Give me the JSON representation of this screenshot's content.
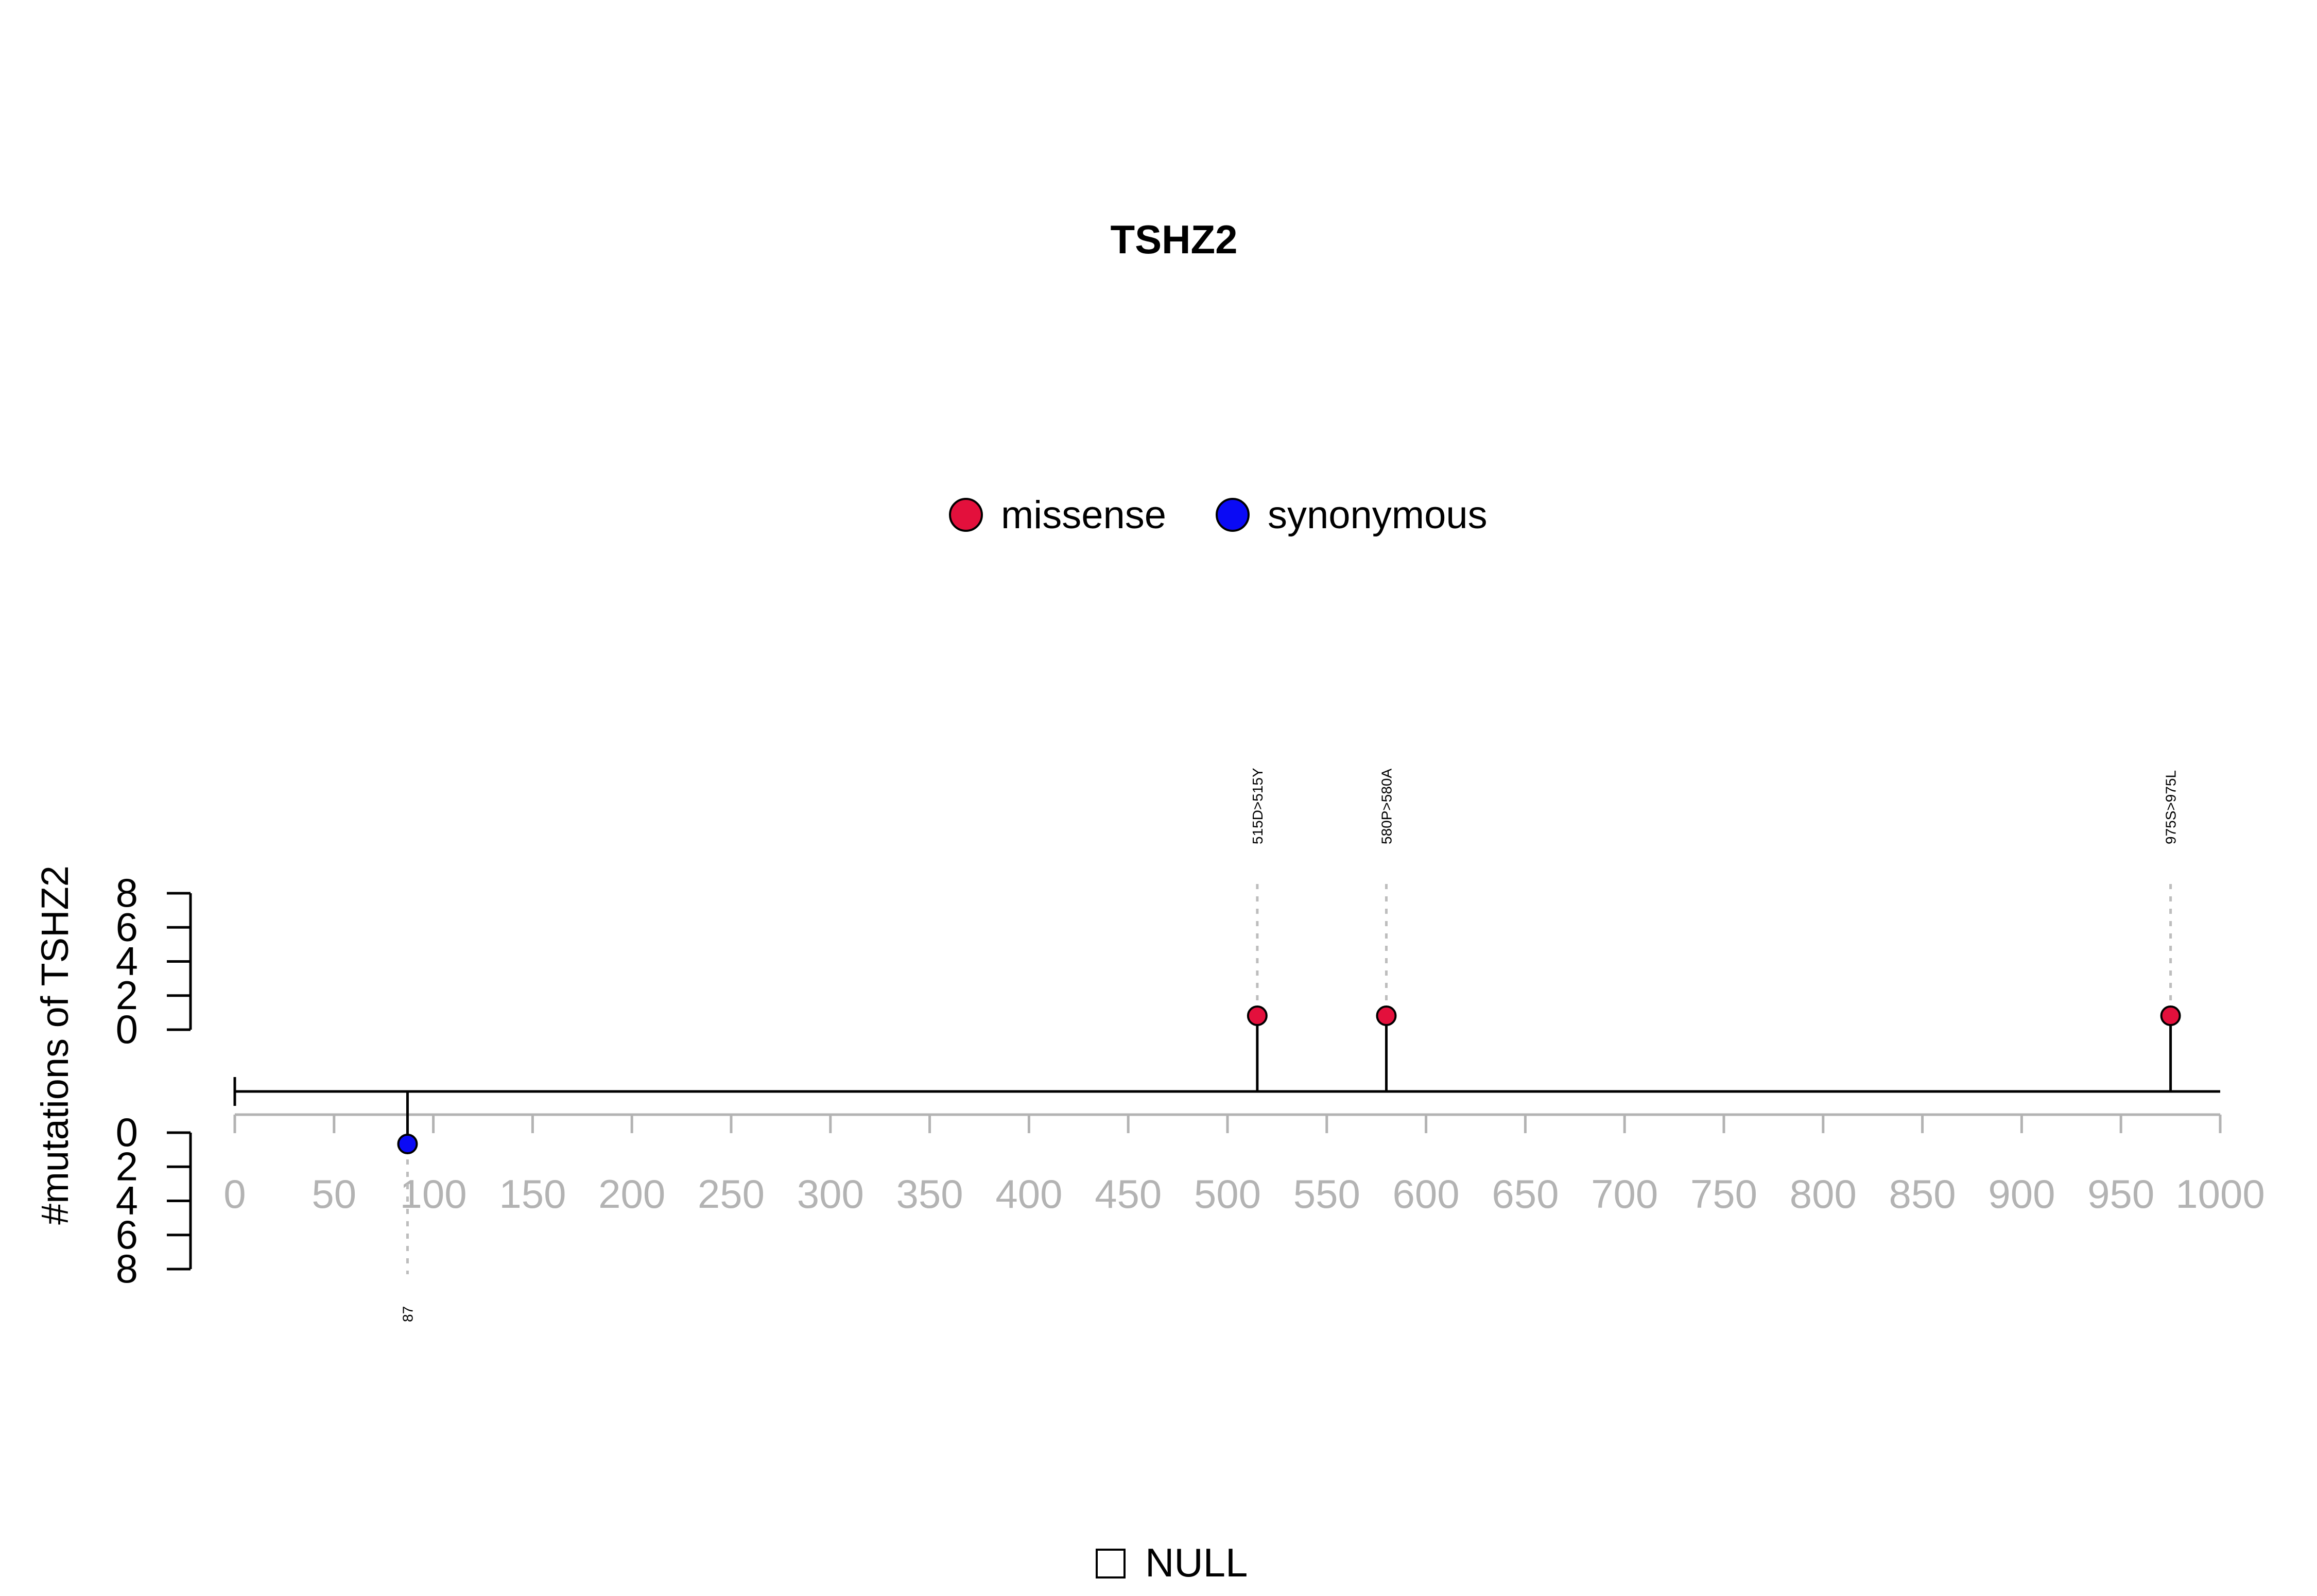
{
  "chart_data": {
    "type": "lollipop",
    "title": "TSHZ2",
    "ylabel": "#mutations of TSHZ2",
    "xlim": [
      0,
      1000
    ],
    "x_ticks": [
      "0",
      "50",
      "100",
      "150",
      "200",
      "250",
      "300",
      "350",
      "400",
      "450",
      "500",
      "550",
      "600",
      "650",
      "700",
      "750",
      "800",
      "850",
      "900",
      "950",
      "1000"
    ],
    "y_ticks_upper": [
      "0",
      "2",
      "4",
      "6",
      "8"
    ],
    "y_ticks_lower": [
      "0",
      "2",
      "4",
      "6",
      "8"
    ],
    "ylim": [
      0,
      8
    ],
    "legend": {
      "placement": "top-center",
      "entries": [
        {
          "label": "missense",
          "color": "#e3103c"
        },
        {
          "label": "synonymous",
          "color": "#0a0af5"
        }
      ]
    },
    "domain_legend": {
      "label": "NULL"
    },
    "points": [
      {
        "position": 87,
        "count": 1,
        "type": "synonymous",
        "side": "lower",
        "label": "87"
      },
      {
        "position": 515,
        "count": 1,
        "type": "missense",
        "side": "upper",
        "label": "515D>515Y"
      },
      {
        "position": 580,
        "count": 1,
        "type": "missense",
        "side": "upper",
        "label": "580P>580A"
      },
      {
        "position": 975,
        "count": 1,
        "type": "missense",
        "side": "upper",
        "label": "975S>975L"
      }
    ]
  }
}
